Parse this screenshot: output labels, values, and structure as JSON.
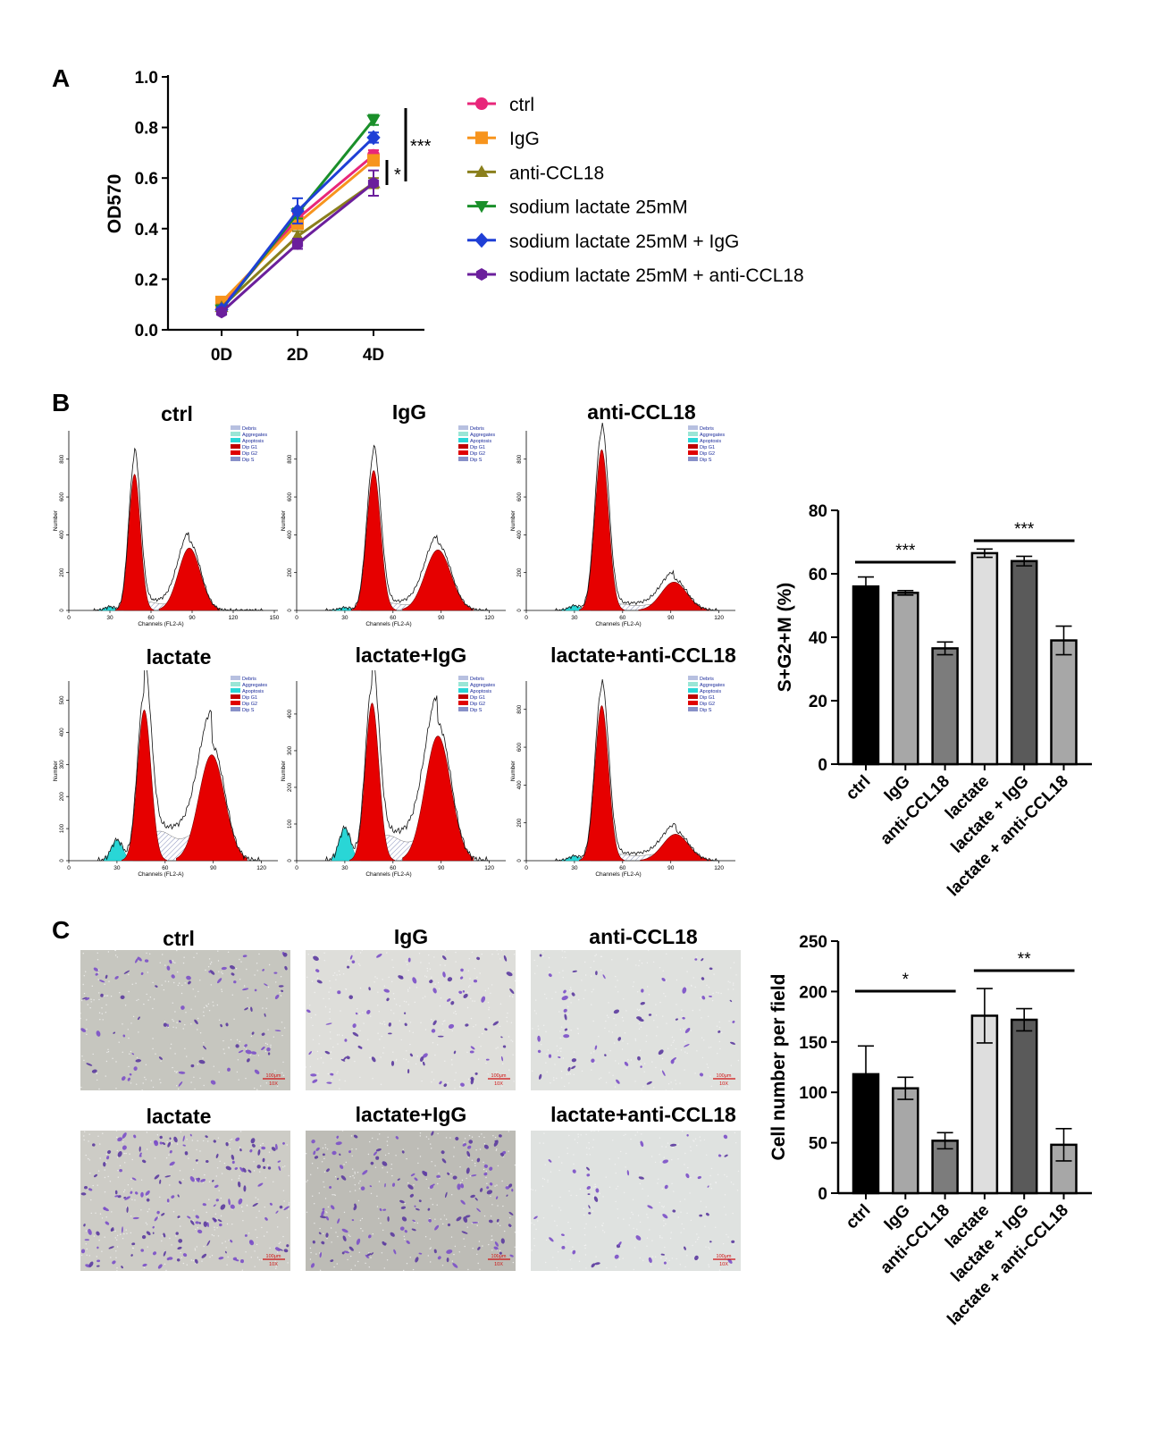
{
  "panels": {
    "a": "A",
    "b": "B",
    "c": "C"
  },
  "chart_data": [
    {
      "type": "line",
      "panel": "A",
      "ylabel": "OD570",
      "xlabel": "",
      "categories": [
        "0D",
        "2D",
        "4D"
      ],
      "yticks": [
        "0.0",
        "0.2",
        "0.4",
        "0.6",
        "0.8",
        "1.0"
      ],
      "ylim": [
        0,
        1.0
      ],
      "series": [
        {
          "name": "ctrl",
          "color": "#e8267a",
          "marker": "circle",
          "values": [
            0.09,
            0.44,
            0.69
          ],
          "err": [
            0.01,
            0.02,
            0.02
          ]
        },
        {
          "name": "IgG",
          "color": "#f7941d",
          "marker": "square",
          "values": [
            0.11,
            0.42,
            0.67
          ],
          "err": [
            0.01,
            0.02,
            0.02
          ]
        },
        {
          "name": "anti-CCL18",
          "color": "#8a7f1c",
          "marker": "triangle-up",
          "values": [
            0.09,
            0.37,
            0.58
          ],
          "err": [
            0.01,
            0.02,
            0.02
          ]
        },
        {
          "name": "sodium lactate 25mM",
          "color": "#1a8f2a",
          "marker": "triangle-down",
          "values": [
            0.08,
            0.46,
            0.83
          ],
          "err": [
            0.01,
            0.02,
            0.02
          ]
        },
        {
          "name": "sodium lactate 25mM + IgG",
          "color": "#1f3fd6",
          "marker": "diamond",
          "values": [
            0.08,
            0.47,
            0.76
          ],
          "err": [
            0.01,
            0.05,
            0.02
          ]
        },
        {
          "name": "sodium lactate 25mM + anti-CCL18",
          "color": "#6b1f9c",
          "marker": "hexagon",
          "values": [
            0.07,
            0.34,
            0.58
          ],
          "err": [
            0.01,
            0.02,
            0.05
          ]
        }
      ],
      "annotations": [
        {
          "text": "***",
          "between": [
            "sodium lactate 25mM",
            "sodium lactate 25mM + anti-CCL18"
          ]
        },
        {
          "text": "*",
          "between": [
            "ctrl",
            "anti-CCL18"
          ]
        }
      ]
    },
    {
      "type": "bar",
      "panel": "B",
      "ylabel": "S+G2+M (%)",
      "categories": [
        "ctrl",
        "IgG",
        "anti-CCL18",
        "lactate",
        "lactate + IgG",
        "lactate + anti-CCL18"
      ],
      "values": [
        56,
        54,
        36.5,
        66.5,
        64,
        39
      ],
      "err": [
        3,
        0.7,
        2,
        1.3,
        1.5,
        4.5
      ],
      "colors": [
        "#000000",
        "#a7a7a7",
        "#7c7c7c",
        "#dedede",
        "#5a5a5a",
        "#a7a7a7"
      ],
      "yticks": [
        "0",
        "20",
        "40",
        "60",
        "80"
      ],
      "ylim": [
        0,
        80
      ],
      "significance": [
        {
          "text": "***",
          "from": 0,
          "to": 2
        },
        {
          "text": "***",
          "from": 3,
          "to": 5
        }
      ]
    },
    {
      "type": "bar",
      "panel": "C",
      "ylabel": "Cell number per field",
      "categories": [
        "ctrl",
        "IgG",
        "anti-CCL18",
        "lactate",
        "lactate + IgG",
        "lactate + anti-CCL18"
      ],
      "values": [
        118,
        104,
        52,
        176,
        172,
        48
      ],
      "err": [
        28,
        11,
        8,
        27,
        11,
        16
      ],
      "colors": [
        "#000000",
        "#a7a7a7",
        "#7c7c7c",
        "#dedede",
        "#5a5a5a",
        "#a7a7a7"
      ],
      "yticks": [
        "0",
        "50",
        "100",
        "150",
        "200",
        "250"
      ],
      "ylim": [
        0,
        250
      ],
      "significance": [
        {
          "text": "*",
          "from": 0,
          "to": 2
        },
        {
          "text": "**",
          "from": 3,
          "to": 5
        }
      ]
    }
  ],
  "flow": {
    "legend": [
      "Debris",
      "Aggregates",
      "Apoptosis",
      "Dip G1",
      "Dip G2",
      "Dip S"
    ],
    "legend_colors": [
      "#b7c0e0",
      "#9ae6d6",
      "#2ad6d6",
      "#c00000",
      "#e00000",
      "#8890c8"
    ],
    "ylabel": "Number",
    "xlabel": "Channels (FL2-A)",
    "panels": [
      {
        "title": "ctrl",
        "xticks": [
          "0",
          "30",
          "60",
          "90",
          "120",
          "150"
        ],
        "xmax": 150,
        "yticks": [
          "0",
          "200",
          "400",
          "600",
          "800"
        ],
        "ymax": 950,
        "g1": 48,
        "g1h": 720,
        "g2": 88,
        "g2h": 330,
        "apop": 20,
        "s": 40
      },
      {
        "title": "IgG",
        "xticks": [
          "0",
          "30",
          "60",
          "90",
          "120"
        ],
        "xmax": 128,
        "yticks": [
          "0",
          "200",
          "400",
          "600",
          "800"
        ],
        "ymax": 950,
        "g1": 48,
        "g1h": 740,
        "g2": 88,
        "g2h": 320,
        "apop": 15,
        "s": 35
      },
      {
        "title": "anti-CCL18",
        "xticks": [
          "0",
          "30",
          "60",
          "90",
          "120"
        ],
        "xmax": 128,
        "yticks": [
          "0",
          "200",
          "400",
          "600",
          "800"
        ],
        "ymax": 950,
        "g1": 47,
        "g1h": 850,
        "g2": 92,
        "g2h": 150,
        "apop": 25,
        "s": 30
      },
      {
        "title": "lactate",
        "xticks": [
          "0",
          "30",
          "60",
          "90",
          "120"
        ],
        "xmax": 128,
        "yticks": [
          "0",
          "100",
          "200",
          "300",
          "400",
          "500"
        ],
        "ymax": 560,
        "g1": 47,
        "g1h": 470,
        "g2": 89,
        "g2h": 330,
        "apop": 65,
        "s": 80
      },
      {
        "title": "lactate+IgG",
        "xticks": [
          "0",
          "30",
          "60",
          "90",
          "120"
        ],
        "xmax": 128,
        "yticks": [
          "0",
          "100",
          "200",
          "300",
          "400"
        ],
        "ymax": 490,
        "g1": 47,
        "g1h": 430,
        "g2": 88,
        "g2h": 340,
        "apop": 90,
        "s": 60
      },
      {
        "title": "lactate+anti-CCL18",
        "xticks": [
          "0",
          "30",
          "60",
          "90",
          "120"
        ],
        "xmax": 128,
        "yticks": [
          "0",
          "200",
          "400",
          "600",
          "800"
        ],
        "ymax": 950,
        "g1": 47,
        "g1h": 820,
        "g2": 93,
        "g2h": 140,
        "apop": 25,
        "s": 30
      }
    ]
  },
  "micro": {
    "scale_text": [
      "100μm",
      "10X"
    ],
    "panels": [
      {
        "title": "ctrl",
        "density": 0.35,
        "bg": "#c6c6bf"
      },
      {
        "title": "IgG",
        "density": 0.35,
        "bg": "#dededa"
      },
      {
        "title": "anti-CCL18",
        "density": 0.2,
        "bg": "#dfe1de"
      },
      {
        "title": "lactate",
        "density": 0.85,
        "bg": "#cdccc6"
      },
      {
        "title": "lactate+IgG",
        "density": 0.7,
        "bg": "#bdbcb6"
      },
      {
        "title": "lactate+anti-CCL18",
        "density": 0.15,
        "bg": "#dfe2e0"
      }
    ]
  }
}
